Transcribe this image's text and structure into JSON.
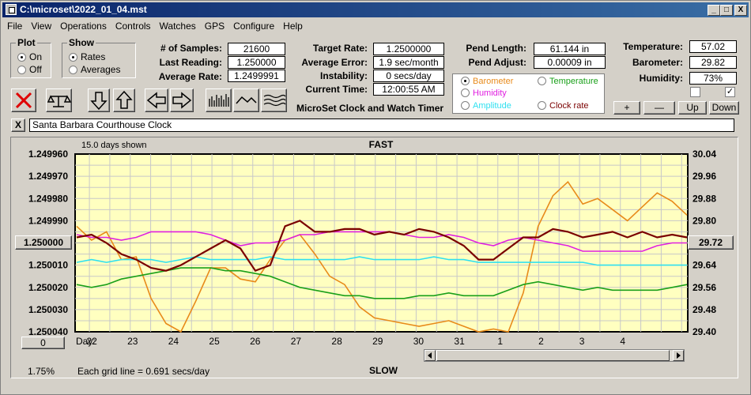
{
  "window": {
    "title": "C:\\microset\\2022_01_04.mst",
    "minimize": "_",
    "maximize": "□",
    "close": "X"
  },
  "menu": [
    "File",
    "View",
    "Operations",
    "Controls",
    "Watches",
    "GPS",
    "Configure",
    "Help"
  ],
  "plot": {
    "title": "Plot",
    "on": "On",
    "off": "Off",
    "selected": "On"
  },
  "show": {
    "title": "Show",
    "rates": "Rates",
    "averages": "Averages",
    "selected": "Rates"
  },
  "stats": {
    "samples_label": "# of Samples:",
    "samples": "21600",
    "last_label": "Last Reading:",
    "last": "1.250000",
    "avg_label": "Average Rate:",
    "avg": "1.2499991",
    "target_label": "Target Rate:",
    "target": "1.2500000",
    "avgerr_label": "Average Error:",
    "avgerr": "1.9 sec/month",
    "instab_label": "Instability:",
    "instab": "0 secs/day",
    "time_label": "Current Time:",
    "time": "12:00:55 AM",
    "app_caption": "MicroSet Clock and Watch Timer",
    "pendlen_label": "Pend Length:",
    "pendlen": "61.144 in",
    "pendadj_label": "Pend Adjust:",
    "pendadj": "0.00009 in",
    "temp_label": "Temperature:",
    "temp": "57.02",
    "baro_label": "Barometer:",
    "baro": "29.82",
    "hum_label": "Humidity:",
    "hum": "73%"
  },
  "legend": {
    "barometer": "Barometer",
    "temperature": "Temperature",
    "humidity": "Humidity",
    "amplitude": "Amplitude",
    "clockrate": "Clock rate",
    "selected": "Barometer"
  },
  "colors": {
    "barometer": "#e88a1a",
    "temperature": "#1aa01a",
    "humidity": "#e020e0",
    "amplitude": "#30e0f0",
    "clockrate": "#7a0000"
  },
  "right_buttons": {
    "plus": "+",
    "minus": "—",
    "up": "Up",
    "down": "Down"
  },
  "checkbox_right_checked": "✓",
  "clock_name": "Santa Barbara Courthouse Clock",
  "clear_label": "X",
  "chart_data": {
    "type": "line",
    "top_label": "FAST",
    "bottom_label": "SLOW",
    "days_shown": "15.0 days shown",
    "grid_note": "Each grid line = 0.691 secs/day",
    "percent": "1.75%",
    "center_left": "1.250000",
    "center_right": "29.72",
    "zero_btn": "0",
    "day_prefix": "Day:",
    "left_ticks": [
      "1.249960",
      "1.249970",
      "1.249980",
      "1.249990",
      "1.250010",
      "1.250020",
      "1.250030",
      "1.250040"
    ],
    "right_ticks": [
      "30.04",
      "29.96",
      "29.88",
      "29.80",
      "29.64",
      "29.56",
      "29.48",
      "29.40"
    ],
    "days": [
      "22",
      "23",
      "24",
      "25",
      "26",
      "27",
      "28",
      "29",
      "30",
      "31",
      "1",
      "2",
      "3",
      "4"
    ],
    "yleft_range": [
      1.24996,
      1.25004
    ],
    "yright_range": [
      30.04,
      29.4
    ],
    "series": [
      {
        "name": "Barometer",
        "key": "barometer",
        "values": [
          29.78,
          29.73,
          29.76,
          29.66,
          29.67,
          29.52,
          29.43,
          29.4,
          29.51,
          29.63,
          29.63,
          29.59,
          29.58,
          29.66,
          29.73,
          29.75,
          29.68,
          29.6,
          29.57,
          29.49,
          29.45,
          29.44,
          29.43,
          29.42,
          29.43,
          29.44,
          29.42,
          29.4,
          29.41,
          29.4,
          29.54,
          29.78,
          29.89,
          29.94,
          29.86,
          29.88,
          29.84,
          29.8,
          29.85,
          29.9,
          29.87,
          29.82
        ]
      },
      {
        "name": "Humidity",
        "key": "humidity",
        "values": [
          29.75,
          29.74,
          29.74,
          29.73,
          29.74,
          29.76,
          29.76,
          29.76,
          29.76,
          29.75,
          29.73,
          29.71,
          29.72,
          29.72,
          29.73,
          29.75,
          29.75,
          29.76,
          29.76,
          29.76,
          29.76,
          29.76,
          29.75,
          29.74,
          29.74,
          29.75,
          29.74,
          29.72,
          29.71,
          29.73,
          29.74,
          29.73,
          29.72,
          29.71,
          29.69,
          29.69,
          29.69,
          29.69,
          29.69,
          29.71,
          29.72,
          29.72
        ]
      },
      {
        "name": "Amplitude",
        "key": "amplitude",
        "values": [
          29.65,
          29.66,
          29.65,
          29.66,
          29.66,
          29.66,
          29.65,
          29.66,
          29.67,
          29.66,
          29.66,
          29.66,
          29.66,
          29.67,
          29.66,
          29.66,
          29.66,
          29.66,
          29.66,
          29.67,
          29.66,
          29.66,
          29.66,
          29.66,
          29.67,
          29.66,
          29.66,
          29.65,
          29.65,
          29.65,
          29.65,
          29.65,
          29.65,
          29.65,
          29.65,
          29.64,
          29.64,
          29.64,
          29.64,
          29.64,
          29.64,
          29.64
        ]
      },
      {
        "name": "Temperature",
        "key": "temperature",
        "values": [
          29.57,
          29.56,
          29.57,
          29.59,
          29.6,
          29.61,
          29.62,
          29.63,
          29.63,
          29.63,
          29.62,
          29.62,
          29.61,
          29.6,
          29.58,
          29.56,
          29.55,
          29.54,
          29.53,
          29.53,
          29.52,
          29.52,
          29.52,
          29.53,
          29.53,
          29.54,
          29.53,
          29.53,
          29.53,
          29.55,
          29.57,
          29.58,
          29.57,
          29.56,
          29.55,
          29.56,
          29.55,
          29.55,
          29.55,
          29.55,
          29.56,
          29.57
        ]
      },
      {
        "name": "Clock rate",
        "key": "clockrate",
        "values": [
          29.74,
          29.75,
          29.72,
          29.68,
          29.66,
          29.63,
          29.62,
          29.64,
          29.67,
          29.7,
          29.73,
          29.7,
          29.62,
          29.64,
          29.78,
          29.8,
          29.76,
          29.76,
          29.77,
          29.77,
          29.75,
          29.76,
          29.75,
          29.77,
          29.76,
          29.74,
          29.71,
          29.66,
          29.66,
          29.7,
          29.74,
          29.74,
          29.77,
          29.76,
          29.74,
          29.75,
          29.76,
          29.74,
          29.76,
          29.74,
          29.75,
          29.74
        ]
      }
    ]
  }
}
